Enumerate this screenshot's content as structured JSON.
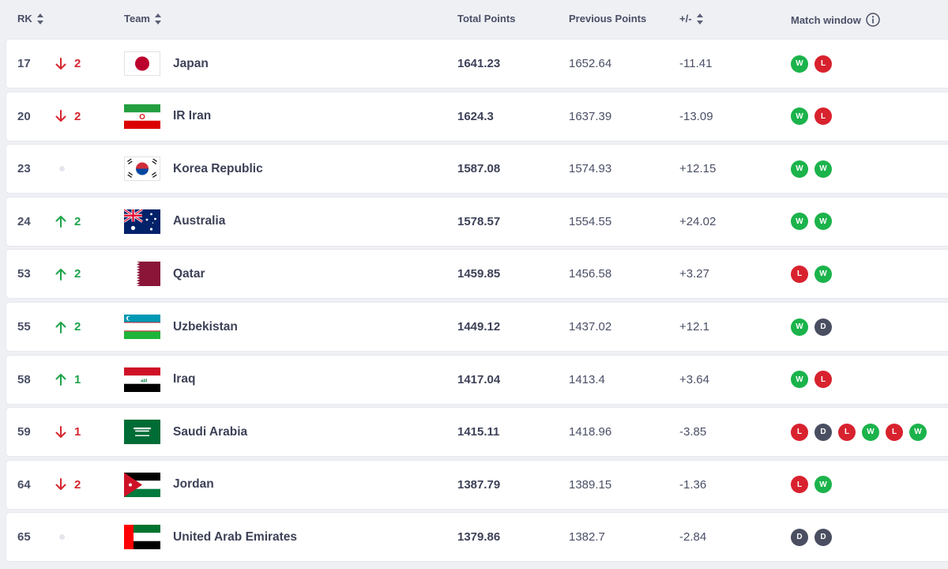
{
  "header": {
    "rank": "RK",
    "team": "Team",
    "total": "Total Points",
    "previous": "Previous Points",
    "diff": "+/-",
    "window": "Match window"
  },
  "colors": {
    "win": "#1bb34b",
    "loss": "#d8222e",
    "draw": "#4a4e61",
    "up": "#1fa34a",
    "down": "#d6262f"
  },
  "rows": [
    {
      "rank": "17",
      "dir": "down",
      "change": "2",
      "team": "Japan",
      "flag": "japan-flag",
      "total": "1641.23",
      "previous": "1652.64",
      "diff": "-11.41",
      "window": [
        "W",
        "L"
      ]
    },
    {
      "rank": "20",
      "dir": "down",
      "change": "2",
      "team": "IR Iran",
      "flag": "iran-flag",
      "total": "1624.3",
      "previous": "1637.39",
      "diff": "-13.09",
      "window": [
        "W",
        "L"
      ]
    },
    {
      "rank": "23",
      "dir": "none",
      "change": "",
      "team": "Korea Republic",
      "flag": "korea-flag",
      "total": "1587.08",
      "previous": "1574.93",
      "diff": "+12.15",
      "window": [
        "W",
        "W"
      ]
    },
    {
      "rank": "24",
      "dir": "up",
      "change": "2",
      "team": "Australia",
      "flag": "australia-flag",
      "total": "1578.57",
      "previous": "1554.55",
      "diff": "+24.02",
      "window": [
        "W",
        "W"
      ]
    },
    {
      "rank": "53",
      "dir": "up",
      "change": "2",
      "team": "Qatar",
      "flag": "qatar-flag",
      "total": "1459.85",
      "previous": "1456.58",
      "diff": "+3.27",
      "window": [
        "L",
        "W"
      ]
    },
    {
      "rank": "55",
      "dir": "up",
      "change": "2",
      "team": "Uzbekistan",
      "flag": "uzbekistan-flag",
      "total": "1449.12",
      "previous": "1437.02",
      "diff": "+12.1",
      "window": [
        "W",
        "D"
      ]
    },
    {
      "rank": "58",
      "dir": "up",
      "change": "1",
      "team": "Iraq",
      "flag": "iraq-flag",
      "total": "1417.04",
      "previous": "1413.4",
      "diff": "+3.64",
      "window": [
        "W",
        "L"
      ]
    },
    {
      "rank": "59",
      "dir": "down",
      "change": "1",
      "team": "Saudi Arabia",
      "flag": "saudi-arabia-flag",
      "total": "1415.11",
      "previous": "1418.96",
      "diff": "-3.85",
      "window": [
        "L",
        "D",
        "L",
        "W",
        "L",
        "W"
      ]
    },
    {
      "rank": "64",
      "dir": "down",
      "change": "2",
      "team": "Jordan",
      "flag": "jordan-flag",
      "total": "1387.79",
      "previous": "1389.15",
      "diff": "-1.36",
      "window": [
        "L",
        "W"
      ]
    },
    {
      "rank": "65",
      "dir": "none",
      "change": "",
      "team": "United Arab Emirates",
      "flag": "uae-flag",
      "total": "1379.86",
      "previous": "1382.7",
      "diff": "-2.84",
      "window": [
        "D",
        "D"
      ]
    }
  ]
}
